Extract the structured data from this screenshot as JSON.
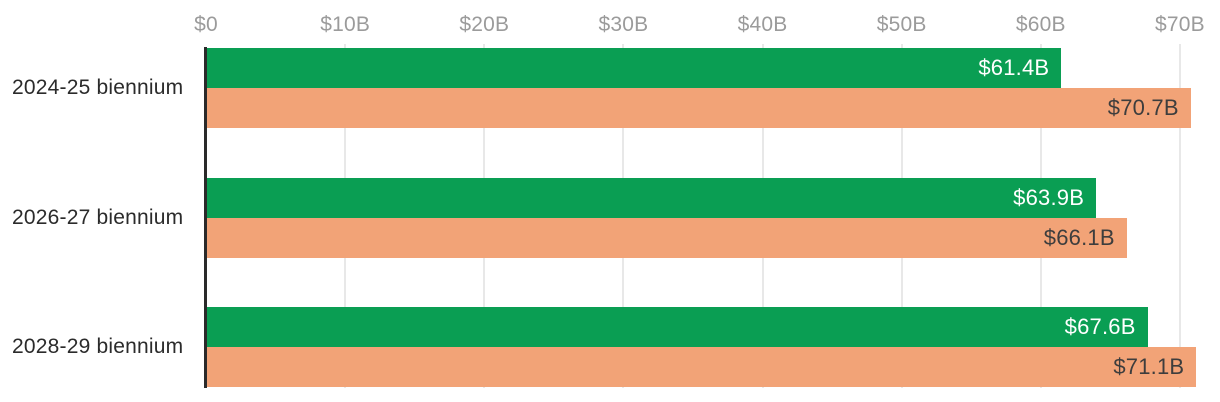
{
  "chart_data": {
    "type": "bar",
    "orientation": "horizontal",
    "categories": [
      "2024-25 biennium",
      "2026-27 biennium",
      "2028-29 biennium"
    ],
    "series": [
      {
        "name": "green_series",
        "color": "#0a9e53",
        "label_color": "#ffffff",
        "values": [
          61.4,
          63.9,
          67.6
        ],
        "value_labels": [
          "$61.4B",
          "$63.9B",
          "$67.6B"
        ]
      },
      {
        "name": "orange_series",
        "color": "#f2a377",
        "label_color": "#3d3d3d",
        "values": [
          70.7,
          66.1,
          71.1
        ],
        "value_labels": [
          "$70.7B",
          "$66.1B",
          "$71.1B"
        ]
      }
    ],
    "x_axis": {
      "position": "top",
      "tick_labels": [
        "$0",
        "$10B",
        "$20B",
        "$30B",
        "$40B",
        "$50B",
        "$60B",
        "$70B"
      ],
      "tick_values": [
        0,
        10,
        20,
        30,
        40,
        50,
        60,
        70
      ],
      "range": [
        0,
        70
      ],
      "tick_color": "#9b9b9b"
    },
    "grid": true,
    "legend": false,
    "colors": {
      "gridline": "#e8e8e8",
      "axis_line": "#2a2a2a",
      "category_label": "#2b2b2b",
      "background": "#ffffff"
    }
  }
}
